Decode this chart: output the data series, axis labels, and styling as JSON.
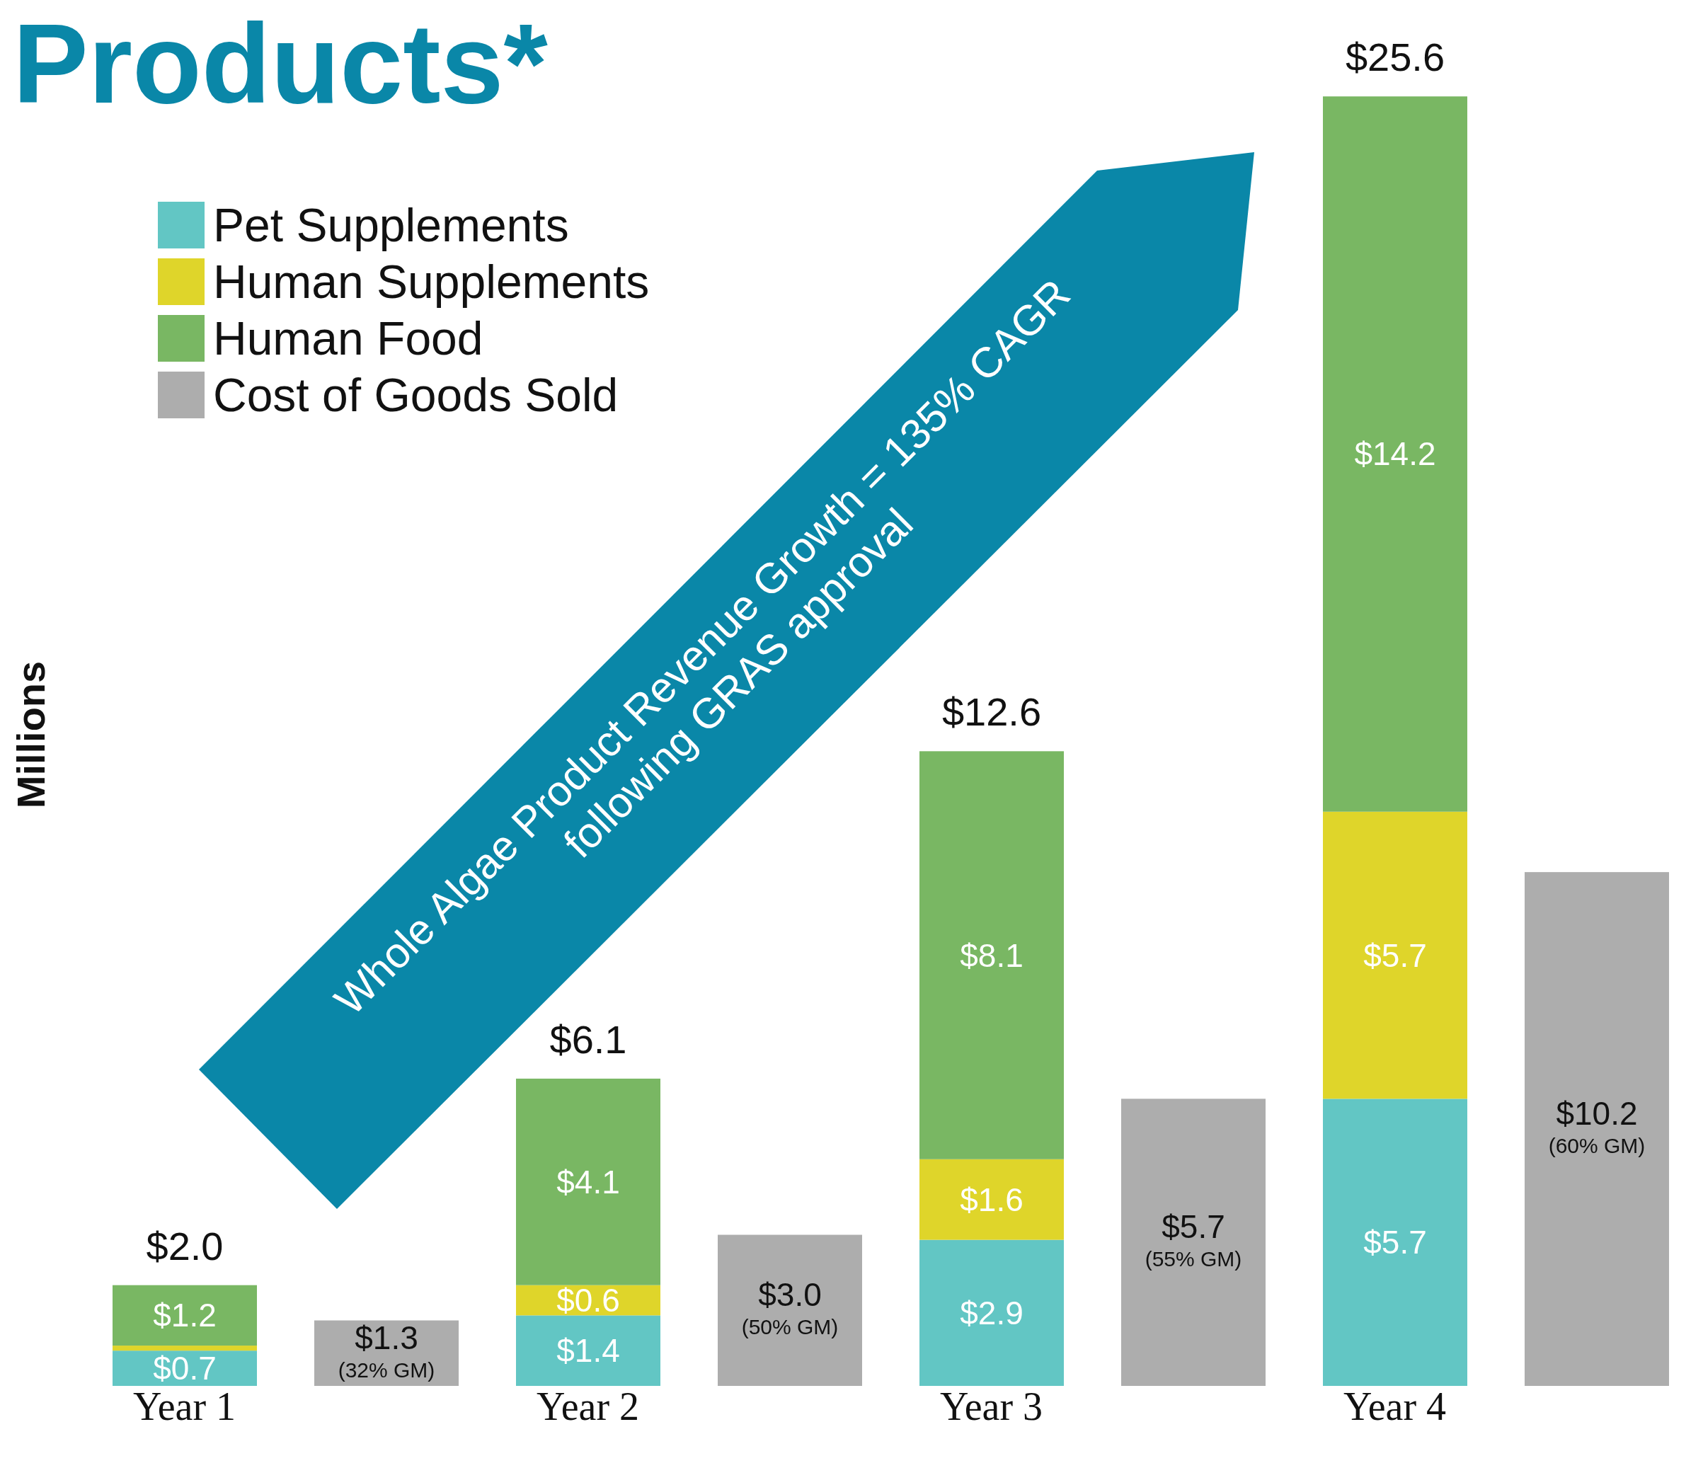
{
  "chart_data": {
    "type": "bar",
    "title": "Products*",
    "ylabel": "Millions",
    "stacked": true,
    "tick_labels": "x",
    "legend": "top left",
    "categories": [
      "Year 1",
      null,
      "Year 2",
      null,
      "Year 3",
      null,
      "Year 4",
      null
    ],
    "series": [
      {
        "name": "Pet Supplements",
        "color": "#62c6c4",
        "values": [
          0.7,
          null,
          1.4,
          null,
          2.9,
          null,
          5.7,
          null
        ],
        "value_labels": [
          "$0.7",
          null,
          "$1.4",
          null,
          "$2.9",
          null,
          "$5.7",
          null
        ]
      },
      {
        "name": "Human Supplements",
        "color": "#dfd52a",
        "values": [
          0.1,
          null,
          0.6,
          null,
          1.6,
          null,
          5.7,
          null
        ],
        "value_labels": [
          null,
          null,
          "$0.6",
          null,
          "$1.6",
          null,
          "$5.7",
          null
        ]
      },
      {
        "name": "Human Food",
        "color": "#79b763",
        "values": [
          1.2,
          null,
          4.1,
          null,
          8.1,
          null,
          14.2,
          null
        ],
        "value_labels": [
          "$1.2",
          null,
          "$4.1",
          null,
          "$8.1",
          null,
          "$14.2",
          null
        ]
      },
      {
        "name": "Cost of Goods Sold",
        "color": "#adadad",
        "values": [
          null,
          1.3,
          null,
          3.0,
          null,
          5.7,
          null,
          10.2
        ],
        "value_labels": [
          null,
          "$1.3",
          null,
          "$3.0",
          null,
          "$5.7",
          null,
          "$10.2"
        ]
      }
    ],
    "totals": [
      "$2.0",
      null,
      "$6.1",
      null,
      "$12.6",
      null,
      "$25.6",
      null
    ],
    "annotations": [
      "Whole Algae Product Revenue Growth = 135% CAGR following GRAS approval",
      "(32% GM)",
      "(50% GM)",
      "(55% GM)",
      "(60% GM)"
    ]
  }
}
